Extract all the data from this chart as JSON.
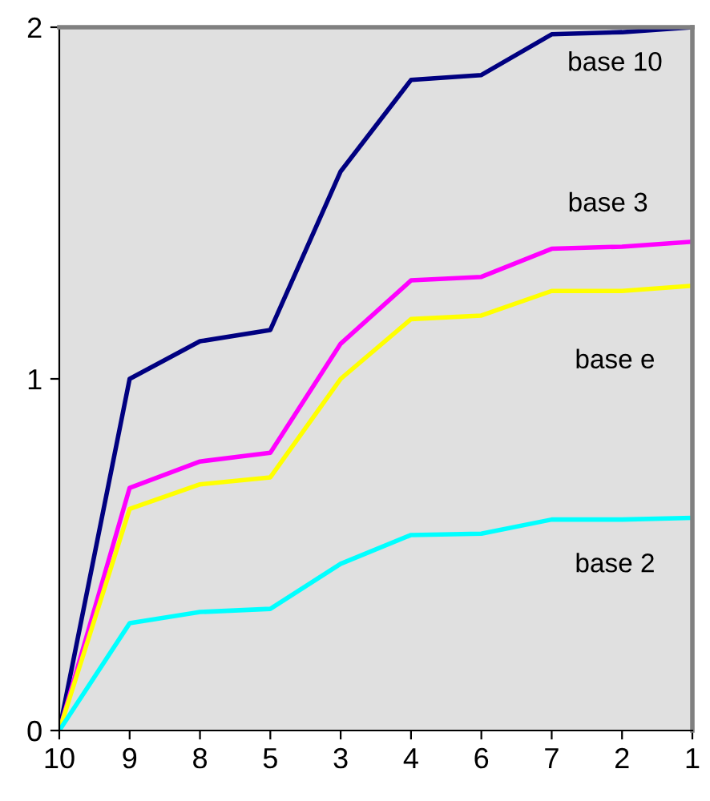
{
  "chart_data": {
    "type": "line",
    "categories": [
      "10",
      "9",
      "8",
      "5",
      "3",
      "4",
      "6",
      "7",
      "2",
      "1"
    ],
    "series": [
      {
        "name": "base 10",
        "color": "#000080",
        "values": [
          0,
          1.0,
          1.107,
          1.139,
          1.59,
          1.85,
          1.864,
          1.98,
          1.986,
          2.0
        ]
      },
      {
        "name": "base 3",
        "color": "#ff00ff",
        "values": [
          0,
          0.69,
          0.765,
          0.79,
          1.1,
          1.28,
          1.29,
          1.37,
          1.376,
          1.39
        ]
      },
      {
        "name": "base e",
        "color": "#ffff00",
        "values": [
          0,
          0.63,
          0.7,
          0.72,
          1.0,
          1.17,
          1.18,
          1.25,
          1.25,
          1.265
        ]
      },
      {
        "name": "base 2",
        "color": "#00ffff",
        "values": [
          0,
          0.305,
          0.337,
          0.346,
          0.474,
          0.556,
          0.56,
          0.6,
          0.6,
          0.605
        ]
      }
    ],
    "ylim": [
      0,
      2
    ],
    "yticks": [
      0,
      1,
      2
    ],
    "grid": false,
    "legend": false,
    "marker": "none",
    "line_style": "solid"
  }
}
